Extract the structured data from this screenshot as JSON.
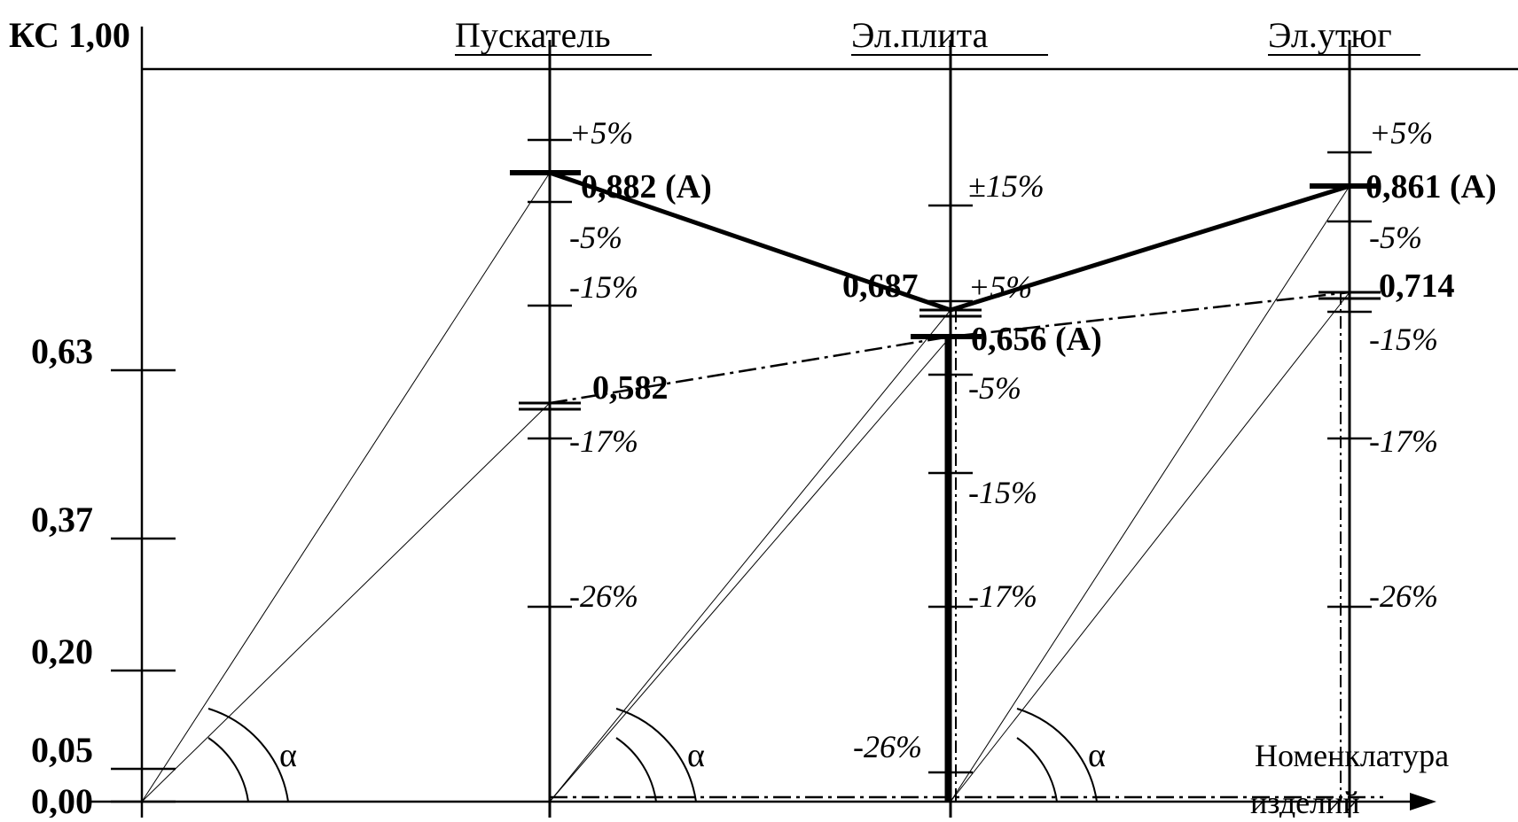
{
  "axis": {
    "y_title": "КС 1,00",
    "x_title_line1": "Номенклатура",
    "x_title_line2": "изделий",
    "ticks": [
      {
        "value": 0.63,
        "label": "0,63"
      },
      {
        "value": 0.37,
        "label": "0,37"
      },
      {
        "value": 0.2,
        "label": "0,20"
      },
      {
        "value": 0.05,
        "label": "0,05"
      },
      {
        "value": 0.0,
        "label": "0,00"
      }
    ]
  },
  "products": [
    {
      "name": "Пускатель",
      "top_value": 0.882,
      "top_label": "0,882 (А)",
      "low_value": 0.582,
      "low_label": "0,582",
      "angle_symbol": "α",
      "percent_ticks": [
        {
          "value": 0.93,
          "label": "+5%"
        },
        {
          "value": 0.84,
          "label": "-5%"
        },
        {
          "value": 0.75,
          "label": "-15%"
        },
        {
          "value": 0.53,
          "label": "-17%"
        },
        {
          "value": 0.3,
          "label": "-26%"
        }
      ]
    },
    {
      "name": "Эл.плита",
      "top_value": 0.687,
      "top_label": "0,687",
      "low_value": 0.656,
      "low_label": "0,656 (А)",
      "angle_symbol": "",
      "percent_ticks": [
        {
          "value": 0.83,
          "label": "±15%"
        },
        {
          "value": 0.72,
          "label": "+5%"
        },
        {
          "value": 0.61,
          "label": "-5%"
        },
        {
          "value": 0.49,
          "label": "-15%"
        },
        {
          "value": 0.3,
          "label": "-17%"
        },
        {
          "value": 0.04,
          "label": "-26%"
        }
      ]
    },
    {
      "name": "Эл.утюг",
      "top_value": 0.861,
      "top_label": "0,861 (А)",
      "low_value": 0.714,
      "low_label": "0,714",
      "angle_symbol": "α",
      "percent_ticks": [
        {
          "value": 0.93,
          "label": "+5%"
        },
        {
          "value": 0.84,
          "label": "-5%"
        },
        {
          "value": 0.72,
          "label": "-15%"
        },
        {
          "value": 0.53,
          "label": "-17%"
        },
        {
          "value": 0.3,
          "label": "-26%"
        }
      ]
    }
  ],
  "origin_angle_symbol": "α"
}
